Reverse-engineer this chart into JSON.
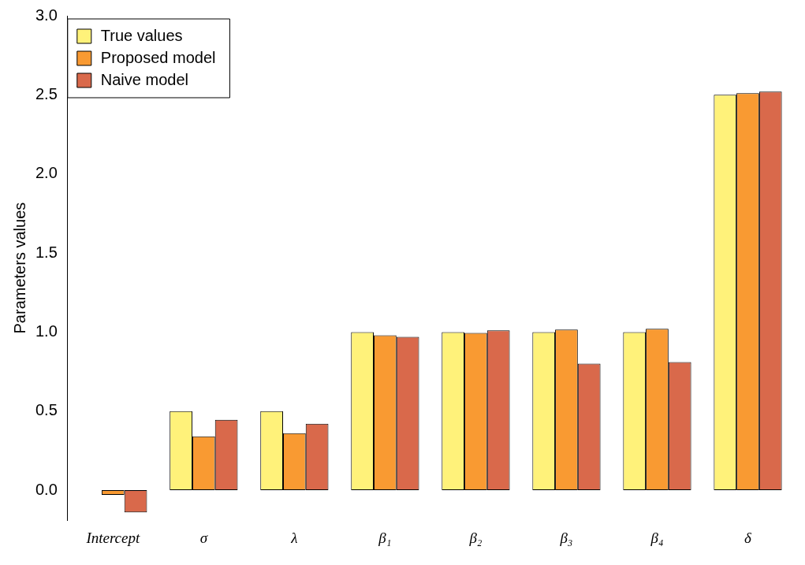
{
  "chart_data": {
    "type": "bar",
    "ylabel": "Parameters values",
    "categories": [
      "Intercept",
      "σ",
      "λ",
      "β₁",
      "β₂",
      "β₃",
      "β₄",
      "δ"
    ],
    "series": [
      {
        "name": "True values",
        "color": "#fff27a",
        "values": [
          0,
          0.5,
          0.5,
          1,
          1,
          1,
          1,
          2.5
        ]
      },
      {
        "name": "Proposed model",
        "color": "#f99a32",
        "values": [
          -0.03,
          0.34,
          0.36,
          0.98,
          0.995,
          1.015,
          1.02,
          2.51
        ]
      },
      {
        "name": "Naive model",
        "color": "#d9694b",
        "values": [
          -0.14,
          0.445,
          0.42,
          0.97,
          1.01,
          0.8,
          0.81,
          2.52
        ]
      }
    ],
    "ylim": [
      -0.19,
      3.0
    ],
    "yticks": [
      {
        "value": 0,
        "label": "0.0"
      },
      {
        "value": 0.5,
        "label": "0.5"
      },
      {
        "value": 1,
        "label": "1.0"
      },
      {
        "value": 1.5,
        "label": "1.5"
      },
      {
        "value": 2,
        "label": "2.0"
      },
      {
        "value": 2.5,
        "label": "2.5"
      },
      {
        "value": 3,
        "label": "3.0"
      }
    ],
    "grid": false,
    "legend": "top left"
  }
}
